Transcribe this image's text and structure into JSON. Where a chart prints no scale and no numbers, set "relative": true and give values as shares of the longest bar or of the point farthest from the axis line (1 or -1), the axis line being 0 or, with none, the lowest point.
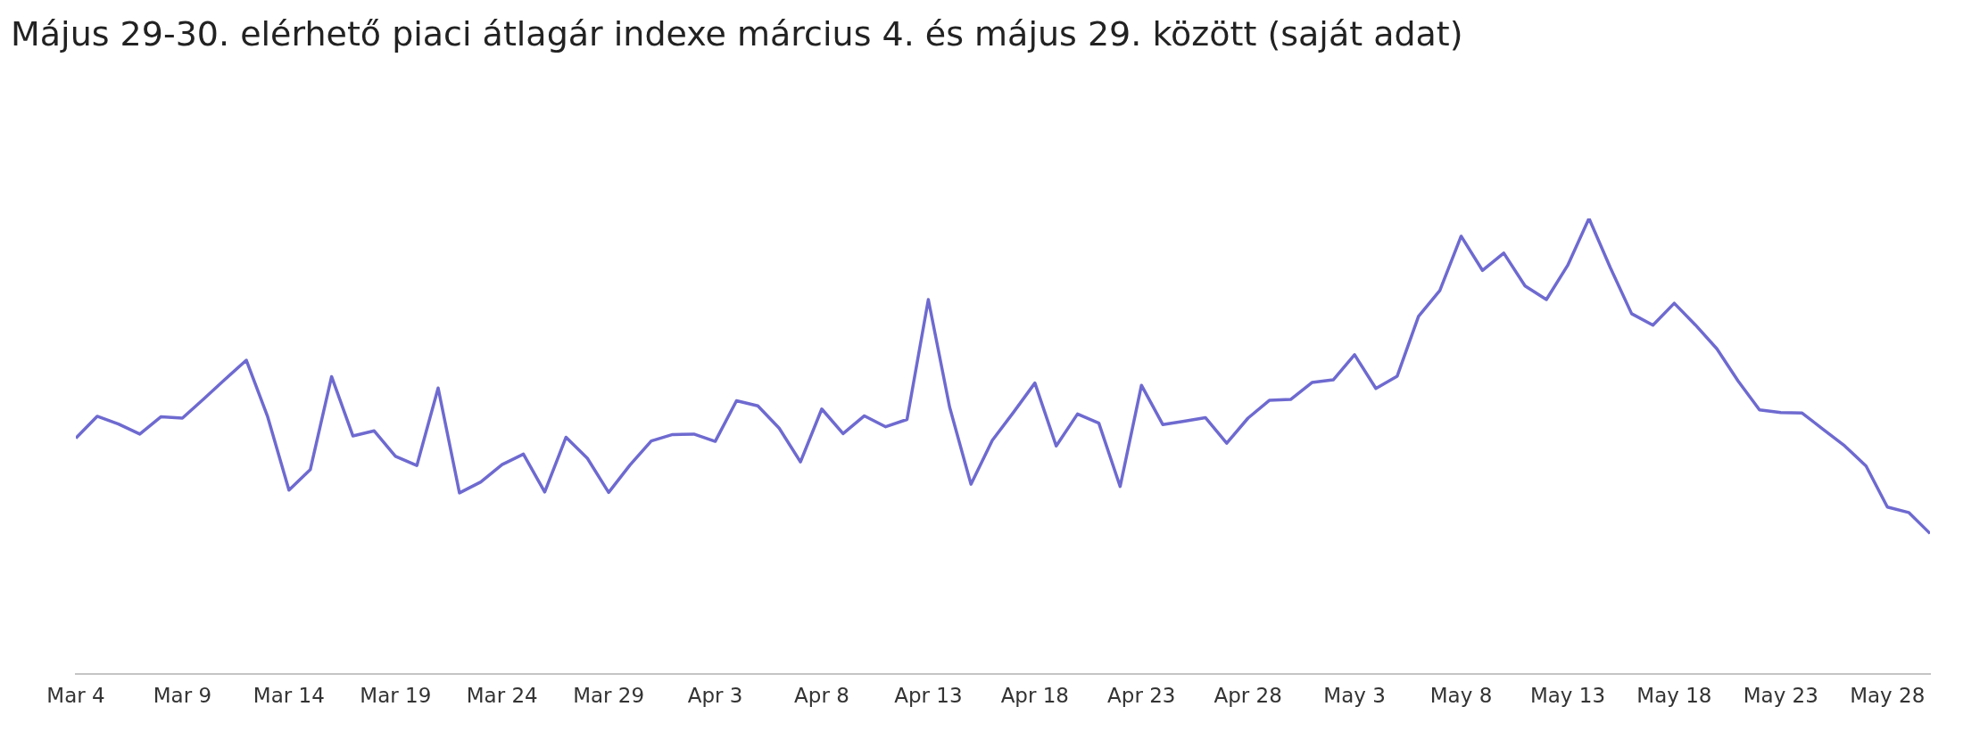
{
  "chart_data": {
    "type": "line",
    "title": "Május 29-30. elérhető piaci átlagár indexe március 4. és május 29. között (saját adat)",
    "relative": true,
    "grid": false,
    "legend": false,
    "marker": "none",
    "line_style": "solid",
    "x": [
      "--03-04",
      "--03-05",
      "--03-06",
      "--03-07",
      "--03-08",
      "--03-09",
      "--03-10",
      "--03-11",
      "--03-12",
      "--03-13",
      "--03-14",
      "--03-15",
      "--03-16",
      "--03-17",
      "--03-18",
      "--03-19",
      "--03-20",
      "--03-21",
      "--03-22",
      "--03-23",
      "--03-24",
      "--03-25",
      "--03-26",
      "--03-27",
      "--03-28",
      "--03-29",
      "--03-30",
      "--03-31",
      "--04-01",
      "--04-02",
      "--04-03",
      "--04-04",
      "--04-05",
      "--04-06",
      "--04-07",
      "--04-08",
      "--04-09",
      "--04-10",
      "--04-11",
      "--04-12",
      "--04-13",
      "--04-14",
      "--04-15",
      "--04-16",
      "--04-17",
      "--04-18",
      "--04-19",
      "--04-20",
      "--04-21",
      "--04-22",
      "--04-23",
      "--04-24",
      "--04-25",
      "--04-26",
      "--04-27",
      "--04-28",
      "--04-29",
      "--04-30",
      "--05-01",
      "--05-02",
      "--05-03",
      "--05-04",
      "--05-05",
      "--05-06",
      "--05-07",
      "--05-08",
      "--05-09",
      "--05-10",
      "--05-11",
      "--05-12",
      "--05-13",
      "--05-14",
      "--05-15",
      "--05-16",
      "--05-17",
      "--05-18",
      "--05-19",
      "--05-20",
      "--05-21",
      "--05-22",
      "--05-23",
      "--05-24",
      "--05-25",
      "--05-26",
      "--05-27",
      "--05-28",
      "--05-29",
      "--05-30"
    ],
    "xlim": [
      "--03-04",
      "--05-30"
    ],
    "xticks": [
      {
        "value": "--03-04",
        "label": "Mar 4"
      },
      {
        "value": "--03-09",
        "label": "Mar 9"
      },
      {
        "value": "--03-14",
        "label": "Mar 14"
      },
      {
        "value": "--03-19",
        "label": "Mar 19"
      },
      {
        "value": "--03-24",
        "label": "Mar 24"
      },
      {
        "value": "--03-29",
        "label": "Mar 29"
      },
      {
        "value": "--04-03",
        "label": "Apr 3"
      },
      {
        "value": "--04-08",
        "label": "Apr 8"
      },
      {
        "value": "--04-13",
        "label": "Apr 13"
      },
      {
        "value": "--04-18",
        "label": "Apr 18"
      },
      {
        "value": "--04-23",
        "label": "Apr 23"
      },
      {
        "value": "--04-28",
        "label": "Apr 28"
      },
      {
        "value": "--05-03",
        "label": "May 3"
      },
      {
        "value": "--05-08",
        "label": "May 8"
      },
      {
        "value": "--05-13",
        "label": "May 13"
      },
      {
        "value": "--05-18",
        "label": "May 18"
      },
      {
        "value": "--05-23",
        "label": "May 23"
      },
      {
        "value": "--05-28",
        "label": "May 28"
      }
    ],
    "series": [
      {
        "color": "#6e6ad0",
        "values": [
          0.518,
          0.566,
          0.549,
          0.527,
          0.565,
          0.562,
          0.604,
          0.647,
          0.689,
          0.565,
          0.404,
          0.449,
          0.653,
          0.523,
          0.534,
          0.478,
          0.458,
          0.628,
          0.398,
          0.422,
          0.46,
          0.483,
          0.4,
          0.52,
          0.474,
          0.399,
          0.459,
          0.512,
          0.526,
          0.527,
          0.511,
          0.6,
          0.589,
          0.54,
          0.466,
          0.582,
          0.528,
          0.567,
          0.543,
          0.559,
          0.822,
          0.586,
          0.417,
          0.513,
          0.575,
          0.639,
          0.501,
          0.571,
          0.551,
          0.412,
          0.634,
          0.548,
          0.555,
          0.563,
          0.507,
          0.562,
          0.601,
          0.603,
          0.64,
          0.646,
          0.701,
          0.627,
          0.654,
          0.785,
          0.842,
          0.961,
          0.886,
          0.924,
          0.852,
          0.822,
          0.897,
          1.0,
          0.892,
          0.791,
          0.766,
          0.814,
          0.766,
          0.714,
          0.643,
          0.58,
          0.574,
          0.573,
          0.537,
          0.501,
          0.457,
          0.367,
          0.355,
          0.309
        ]
      }
    ]
  }
}
